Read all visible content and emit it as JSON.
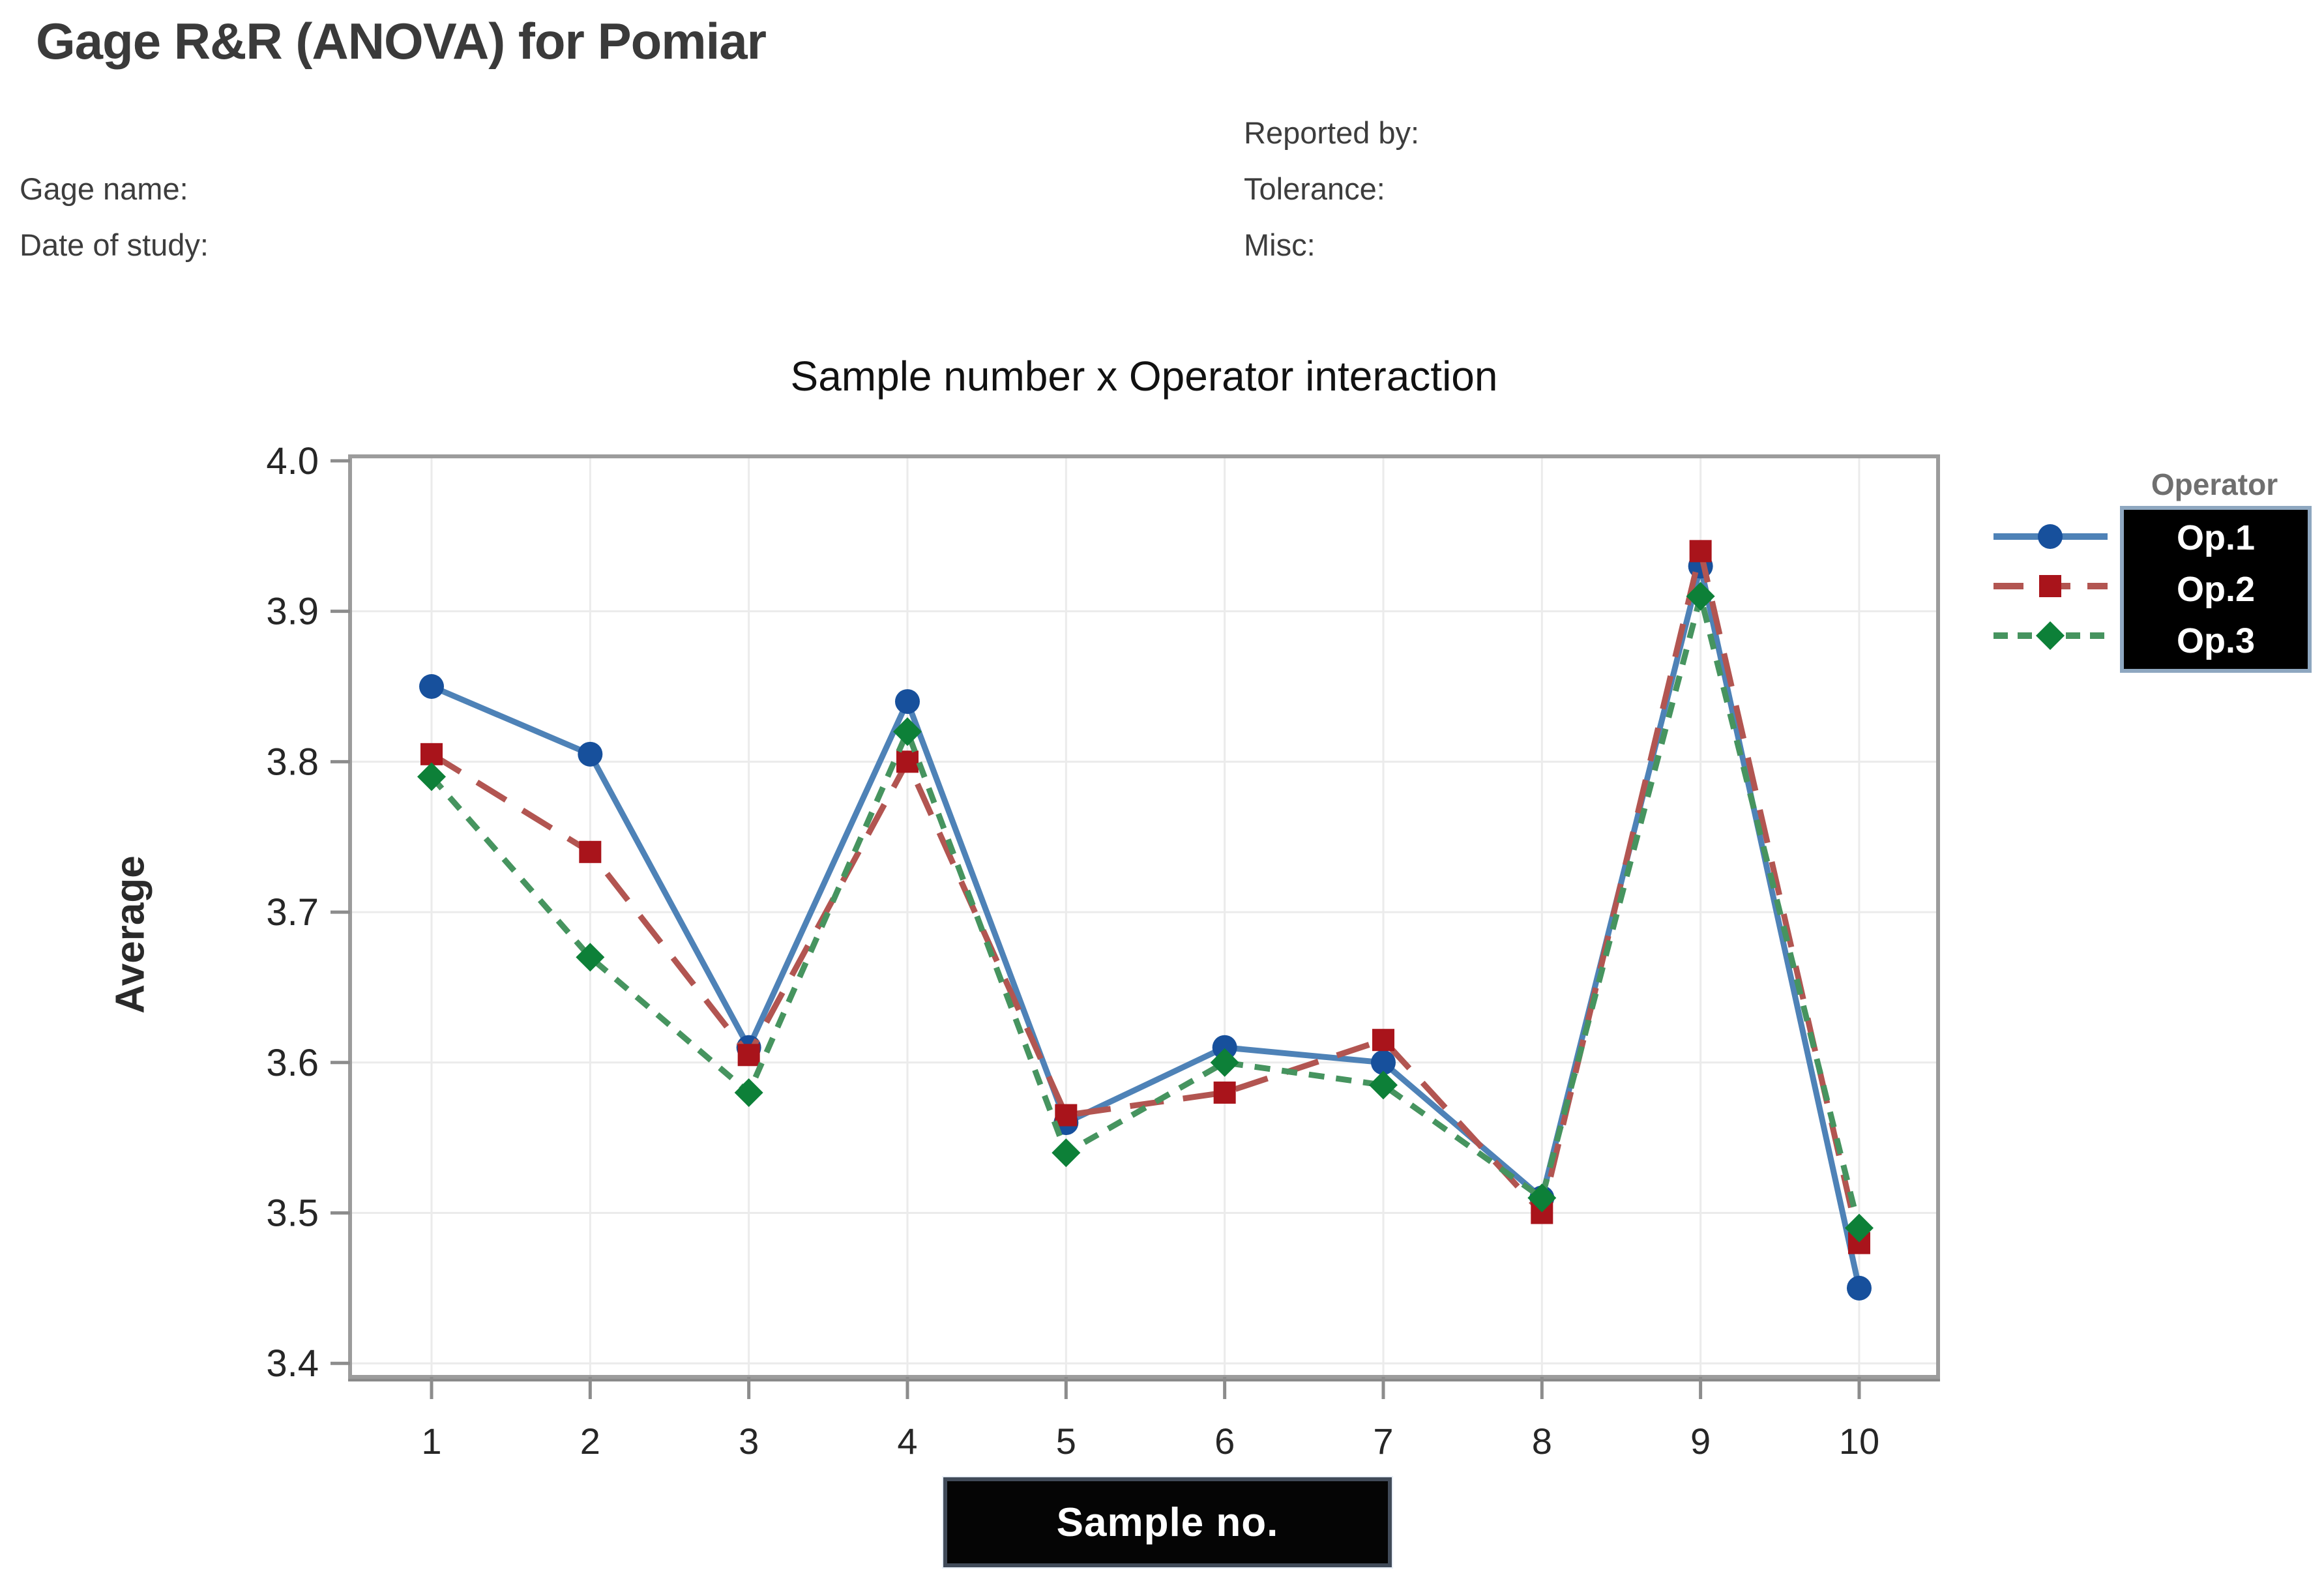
{
  "header": {
    "title": "Gage R&R (ANOVA) for Pomiar"
  },
  "meta": {
    "gage_name_label": "Gage name:",
    "date_of_study_label": "Date of study:",
    "reported_by_label": "Reported by:",
    "tolerance_label": "Tolerance:",
    "misc_label": "Misc:"
  },
  "chart_data": {
    "type": "line",
    "title": "Sample number x Operator interaction",
    "xlabel": "Sample no.",
    "ylabel": "Average",
    "legend_title": "Operator",
    "legend_position": "right",
    "grid": true,
    "categories": [
      1,
      2,
      3,
      4,
      5,
      6,
      7,
      8,
      9,
      10
    ],
    "yticks": [
      "4.0",
      "3.9",
      "3.8",
      "3.7",
      "3.6",
      "3.5",
      "3.4"
    ],
    "ylim": [
      3.39,
      4.0
    ],
    "series": [
      {
        "name": "Op.1",
        "marker": "circle",
        "line_style": "solid",
        "marker_color": "#17509c",
        "line_color": "#4e82b7",
        "values": [
          3.85,
          3.805,
          3.61,
          3.84,
          3.56,
          3.61,
          3.6,
          3.51,
          3.93,
          3.45
        ]
      },
      {
        "name": "Op.2",
        "marker": "square",
        "line_style": "dashed",
        "marker_color": "#a9141b",
        "line_color": "#b25551",
        "values": [
          3.805,
          3.74,
          3.605,
          3.8,
          3.565,
          3.58,
          3.615,
          3.5,
          3.94,
          3.48
        ]
      },
      {
        "name": "Op.3",
        "marker": "diamond",
        "line_style": "short-dash",
        "marker_color": "#0d8038",
        "line_color": "#46945f",
        "values": [
          3.79,
          3.67,
          3.58,
          3.82,
          3.54,
          3.6,
          3.585,
          3.51,
          3.91,
          3.49
        ]
      }
    ],
    "colors": {
      "frame": "#9c9c9c",
      "gridline": "#ebebeb",
      "tick": "#8c8c8c",
      "tick_text": "#262626",
      "legend_box_bg": "#000000",
      "legend_box_border": "#8ea7c0",
      "xlabel_box_bg": "#050505",
      "xlabel_box_border": "#414b59"
    }
  }
}
